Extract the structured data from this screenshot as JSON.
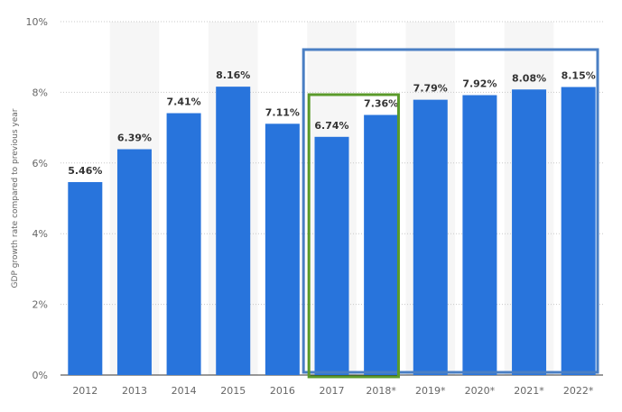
{
  "chart_data": {
    "type": "bar",
    "title": "",
    "xlabel": "",
    "ylabel": "GDP growth rate compared to previous year",
    "categories": [
      "2012",
      "2013",
      "2014",
      "2015",
      "2016",
      "2017",
      "2018*",
      "2019*",
      "2020*",
      "2021*",
      "2022*"
    ],
    "values": [
      5.46,
      6.39,
      7.41,
      8.16,
      7.11,
      6.74,
      7.36,
      7.79,
      7.92,
      8.08,
      8.15
    ],
    "data_labels": [
      "5.46%",
      "6.39%",
      "7.41%",
      "8.16%",
      "7.11%",
      "6.74%",
      "7.36%",
      "7.79%",
      "7.92%",
      "8.08%",
      "8.15%"
    ],
    "ylim": [
      0,
      10
    ],
    "yticks": [
      0,
      2,
      4,
      6,
      8,
      10
    ],
    "ytick_labels": [
      "0%",
      "2%",
      "4%",
      "6%",
      "8%",
      "10%"
    ],
    "grid": true,
    "bar_color": "#2874dc",
    "highlight_boxes": [
      {
        "from_category": "2017",
        "to_category": "2022*",
        "color": "#4a7fc4"
      },
      {
        "from_category": "2017",
        "to_category": "2018*",
        "color": "#5a9a2a"
      }
    ]
  }
}
